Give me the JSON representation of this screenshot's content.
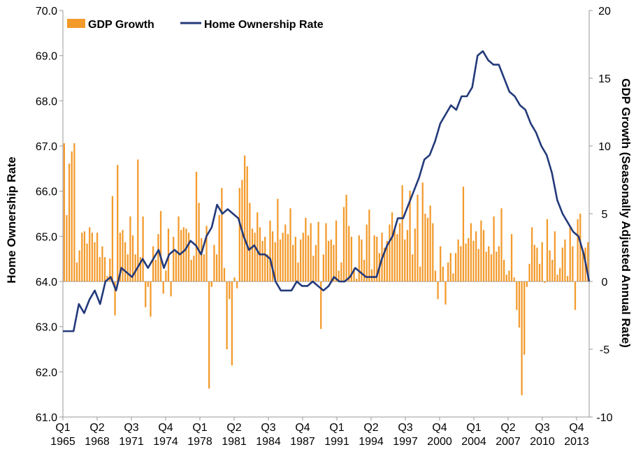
{
  "chart_data": {
    "type": "bar+line",
    "legend": {
      "placement": "top-left",
      "items": [
        {
          "label": "GDP Growth",
          "color": "#F39A2B",
          "kind": "bar"
        },
        {
          "label": "Home Ownership Rate",
          "color": "#233A7A",
          "kind": "line"
        }
      ]
    },
    "left_axis": {
      "title": "Home Ownership Rate",
      "ylim": [
        61.0,
        70.0
      ],
      "ticks": [
        "61.0",
        "62.0",
        "63.0",
        "64.0",
        "65.0",
        "66.0",
        "67.0",
        "68.0",
        "69.0",
        "70.0"
      ]
    },
    "right_axis": {
      "title": "GDP Growth (Seasonally Adjusted Annual Rate)",
      "ylim": [
        -10,
        20
      ],
      "ticks": [
        "-10",
        "-5",
        "0",
        "5",
        "10",
        "15",
        "20"
      ]
    },
    "x_axis": {
      "range_years": [
        1965.0,
        2014.5
      ],
      "tick_labels": [
        {
          "q": "Q1",
          "y": "1965"
        },
        {
          "q": "Q2",
          "y": "1968"
        },
        {
          "q": "Q3",
          "y": "1971"
        },
        {
          "q": "Q4",
          "y": "1974"
        },
        {
          "q": "Q1",
          "y": "1978"
        },
        {
          "q": "Q2",
          "y": "1981"
        },
        {
          "q": "Q3",
          "y": "1984"
        },
        {
          "q": "Q4",
          "y": "1987"
        },
        {
          "q": "Q1",
          "y": "1991"
        },
        {
          "q": "Q2",
          "y": "1994"
        },
        {
          "q": "Q3",
          "y": "1997"
        },
        {
          "q": "Q4",
          "y": "2000"
        },
        {
          "q": "Q1",
          "y": "2004"
        },
        {
          "q": "Q2",
          "y": "2007"
        },
        {
          "q": "Q3",
          "y": "2010"
        },
        {
          "q": "Q4",
          "y": "2013"
        }
      ]
    },
    "series": [
      {
        "name": "Home Ownership Rate",
        "axis": "left",
        "type": "line",
        "points": [
          [
            1965.0,
            62.9
          ],
          [
            1966.0,
            62.9
          ],
          [
            1966.5,
            63.5
          ],
          [
            1967.0,
            63.3
          ],
          [
            1967.5,
            63.6
          ],
          [
            1968.0,
            63.8
          ],
          [
            1968.5,
            63.5
          ],
          [
            1969.0,
            64.0
          ],
          [
            1969.5,
            64.1
          ],
          [
            1970.0,
            63.8
          ],
          [
            1970.5,
            64.3
          ],
          [
            1971.0,
            64.2
          ],
          [
            1971.5,
            64.1
          ],
          [
            1972.0,
            64.3
          ],
          [
            1972.5,
            64.5
          ],
          [
            1973.0,
            64.3
          ],
          [
            1973.5,
            64.5
          ],
          [
            1974.0,
            64.7
          ],
          [
            1974.5,
            64.3
          ],
          [
            1975.0,
            64.6
          ],
          [
            1975.5,
            64.7
          ],
          [
            1976.0,
            64.6
          ],
          [
            1976.5,
            64.7
          ],
          [
            1977.0,
            64.9
          ],
          [
            1977.5,
            64.8
          ],
          [
            1978.0,
            64.6
          ],
          [
            1978.5,
            65.0
          ],
          [
            1979.0,
            65.2
          ],
          [
            1979.5,
            65.7
          ],
          [
            1980.0,
            65.5
          ],
          [
            1980.5,
            65.6
          ],
          [
            1981.0,
            65.5
          ],
          [
            1981.5,
            65.4
          ],
          [
            1982.0,
            65.0
          ],
          [
            1982.5,
            64.7
          ],
          [
            1983.0,
            64.8
          ],
          [
            1983.5,
            64.6
          ],
          [
            1984.0,
            64.6
          ],
          [
            1984.5,
            64.5
          ],
          [
            1985.0,
            64.0
          ],
          [
            1985.5,
            63.8
          ],
          [
            1986.0,
            63.8
          ],
          [
            1986.5,
            63.8
          ],
          [
            1987.0,
            64.0
          ],
          [
            1987.5,
            63.9
          ],
          [
            1988.0,
            63.9
          ],
          [
            1988.5,
            64.0
          ],
          [
            1989.0,
            63.9
          ],
          [
            1989.5,
            63.8
          ],
          [
            1990.0,
            63.9
          ],
          [
            1990.5,
            64.1
          ],
          [
            1991.0,
            64.0
          ],
          [
            1991.5,
            64.0
          ],
          [
            1992.0,
            64.1
          ],
          [
            1992.5,
            64.3
          ],
          [
            1993.0,
            64.2
          ],
          [
            1993.5,
            64.1
          ],
          [
            1994.0,
            64.1
          ],
          [
            1994.5,
            64.1
          ],
          [
            1995.0,
            64.5
          ],
          [
            1995.5,
            64.8
          ],
          [
            1996.0,
            65.0
          ],
          [
            1996.5,
            65.4
          ],
          [
            1997.0,
            65.4
          ],
          [
            1997.5,
            65.7
          ],
          [
            1998.0,
            66.0
          ],
          [
            1998.5,
            66.3
          ],
          [
            1999.0,
            66.7
          ],
          [
            1999.5,
            66.8
          ],
          [
            2000.0,
            67.1
          ],
          [
            2000.5,
            67.5
          ],
          [
            2001.0,
            67.7
          ],
          [
            2001.5,
            67.9
          ],
          [
            2002.0,
            67.8
          ],
          [
            2002.5,
            68.1
          ],
          [
            2003.0,
            68.1
          ],
          [
            2003.5,
            68.3
          ],
          [
            2004.0,
            69.0
          ],
          [
            2004.5,
            69.1
          ],
          [
            2005.0,
            68.9
          ],
          [
            2005.5,
            68.8
          ],
          [
            2006.0,
            68.8
          ],
          [
            2006.5,
            68.5
          ],
          [
            2007.0,
            68.2
          ],
          [
            2007.5,
            68.1
          ],
          [
            2008.0,
            67.9
          ],
          [
            2008.5,
            67.8
          ],
          [
            2009.0,
            67.5
          ],
          [
            2009.5,
            67.3
          ],
          [
            2010.0,
            67.0
          ],
          [
            2010.5,
            66.8
          ],
          [
            2011.0,
            66.4
          ],
          [
            2011.5,
            65.8
          ],
          [
            2012.0,
            65.5
          ],
          [
            2012.5,
            65.3
          ],
          [
            2013.0,
            65.1
          ],
          [
            2013.5,
            65.0
          ],
          [
            2014.0,
            64.6
          ],
          [
            2014.5,
            64.0
          ]
        ]
      },
      {
        "name": "GDP Growth",
        "axis": "right",
        "type": "bar",
        "values": [
          10.2,
          4.9,
          8.7,
          9.6,
          10.2,
          1.4,
          2.3,
          3.6,
          3.7,
          2.8,
          4.0,
          3.6,
          2.9,
          3.6,
          1.8,
          2.6,
          1.8,
          0.4,
          1.7,
          6.3,
          -2.5,
          8.6,
          3.6,
          3.8,
          2.9,
          2.0,
          4.8,
          3.4,
          2.0,
          9.0,
          1.8,
          4.8,
          -1.9,
          -0.4,
          -2.6,
          2.6,
          1.6,
          3.5,
          5.2,
          -0.9,
          0.8,
          3.9,
          -1.1,
          3.3,
          2.2,
          4.8,
          3.8,
          4.0,
          3.9,
          3.6,
          1.6,
          1.9,
          8.1,
          5.8,
          3.2,
          2.0,
          4.1,
          -7.9,
          -0.4,
          2.7,
          2.0,
          4.9,
          6.9,
          1.0,
          -5.0,
          -1.3,
          -6.2,
          0.3,
          -0.5,
          6.9,
          7.5,
          9.3,
          8.5,
          5.8,
          3.9,
          3.6,
          5.1,
          4.0,
          3.0,
          3.3,
          2.0,
          4.5,
          3.7,
          2.9,
          6.1,
          3.1,
          3.6,
          4.2,
          3.5,
          5.4,
          2.7,
          3.3,
          1.4,
          3.1,
          3.6,
          4.7,
          3.4,
          4.3,
          1.9,
          2.7,
          4.4,
          -3.5,
          2.0,
          4.3,
          3.0,
          3.1,
          2.7,
          4.5,
          0.8,
          1.4,
          5.5,
          6.4,
          4.1,
          3.3,
          1.0,
          0.2,
          3.4,
          3.1,
          1.6,
          4.2,
          5.3,
          0.9,
          3.4,
          3.3,
          2.1,
          3.6,
          2.5,
          3.0,
          4.2,
          5.1,
          3.9,
          3.5,
          4.3,
          7.1,
          3.1,
          3.8,
          6.7,
          2.0,
          3.9,
          6.4,
          1.1,
          7.3,
          5.0,
          4.7,
          5.6,
          4.3,
          0.8,
          -1.3,
          2.6,
          1.1,
          -1.7,
          1.4,
          2.1,
          0.6,
          2.1,
          3.1,
          2.6,
          7.0,
          2.8,
          3.2,
          4.3,
          3.0,
          3.7,
          2.4,
          4.5,
          3.8,
          2.2,
          2.6,
          2.0,
          4.8,
          2.2,
          2.6,
          5.4,
          1.6,
          0.5,
          0.8,
          3.5,
          0.3,
          -2.1,
          -3.4,
          -8.4,
          -5.4,
          -0.4,
          1.3,
          4.0,
          2.7,
          2.5,
          1.3,
          2.9,
          -0.1,
          4.6,
          2.3,
          1.6,
          3.7,
          0.5,
          1.0,
          2.5,
          3.1,
          0.4,
          4.1,
          2.6,
          -2.1,
          4.6,
          5.0,
          2.2,
          2.5,
          2.9
        ]
      }
    ]
  }
}
